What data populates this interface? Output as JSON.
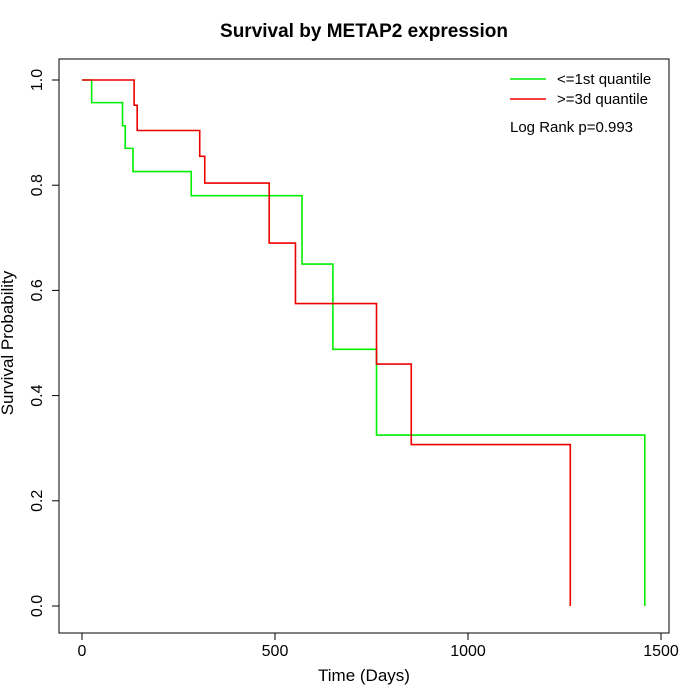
{
  "chart_data": {
    "type": "line",
    "subtype": "kaplan-meier step",
    "title": "Survival by METAP2 expression",
    "xlabel": "Time (Days)",
    "ylabel": "Survival Probability",
    "xlim": [
      0,
      1500
    ],
    "ylim": [
      0,
      1
    ],
    "x_ticks": [
      0,
      500,
      1000,
      1500
    ],
    "y_ticks": [
      0.0,
      0.2,
      0.4,
      0.6,
      0.8,
      1.0
    ],
    "x_tick_labels": [
      "0",
      "500",
      "1000",
      "1500"
    ],
    "y_tick_labels": [
      "0.0",
      "0.2",
      "0.4",
      "0.6",
      "0.8",
      "1.0"
    ],
    "grid": false,
    "legend_position": "top-right",
    "annotation": "Log Rank p=0.993",
    "series": [
      {
        "name": "<=1st quantile",
        "color": "#00ee00",
        "points": [
          [
            0,
            1.0
          ],
          [
            25,
            0.957
          ],
          [
            105,
            0.913
          ],
          [
            112,
            0.87
          ],
          [
            132,
            0.826
          ],
          [
            283,
            0.78
          ],
          [
            570,
            0.65
          ],
          [
            650,
            0.488
          ],
          [
            763,
            0.325
          ],
          [
            1458,
            0.325
          ],
          [
            1458,
            0.0
          ]
        ]
      },
      {
        "name": ">=3d quantile",
        "color": "#ee0000",
        "points": [
          [
            0,
            1.0
          ],
          [
            135,
            0.952
          ],
          [
            143,
            0.904
          ],
          [
            305,
            0.855
          ],
          [
            318,
            0.804
          ],
          [
            485,
            0.69
          ],
          [
            553,
            0.575
          ],
          [
            763,
            0.46
          ],
          [
            853,
            0.307
          ],
          [
            1265,
            0.307
          ],
          [
            1265,
            0.0
          ]
        ]
      }
    ]
  }
}
